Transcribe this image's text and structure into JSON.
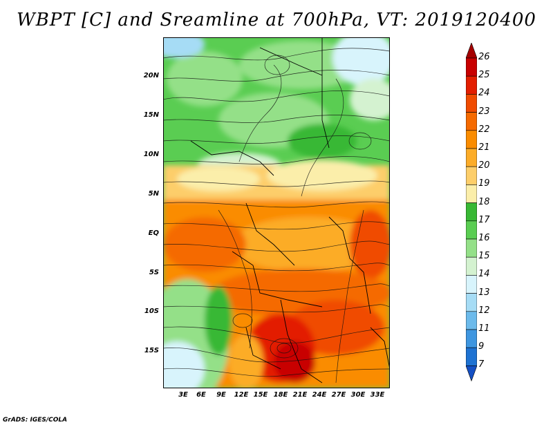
{
  "title": "WBPT [C] and Sreamline at 700hPa, VT: 2019120400",
  "footer": "GrADS: IGES/COLA",
  "lat_axis": [
    "20N",
    "15N",
    "10N",
    "5N",
    "EQ",
    "5S",
    "10S",
    "15S"
  ],
  "lon_axis": [
    "3E",
    "6E",
    "9E",
    "12E",
    "15E",
    "18E",
    "21E",
    "24E",
    "27E",
    "30E",
    "33E"
  ],
  "colorbar": {
    "labels": [
      "26",
      "25",
      "24",
      "23",
      "22",
      "21",
      "20",
      "19",
      "18",
      "17",
      "16",
      "15",
      "14",
      "13",
      "12",
      "11",
      "9",
      "7"
    ],
    "colors": [
      "#a50000",
      "#c80000",
      "#e31e00",
      "#f04b00",
      "#f56a00",
      "#fa8c00",
      "#fcac28",
      "#fdce6a",
      "#fbeeaa",
      "#38b834",
      "#5acd52",
      "#94e088",
      "#d4f2d0",
      "#d8f4fc",
      "#a6dcf5",
      "#6cbaeb",
      "#3e96e0",
      "#1e72d2",
      "#1450c4"
    ]
  }
}
